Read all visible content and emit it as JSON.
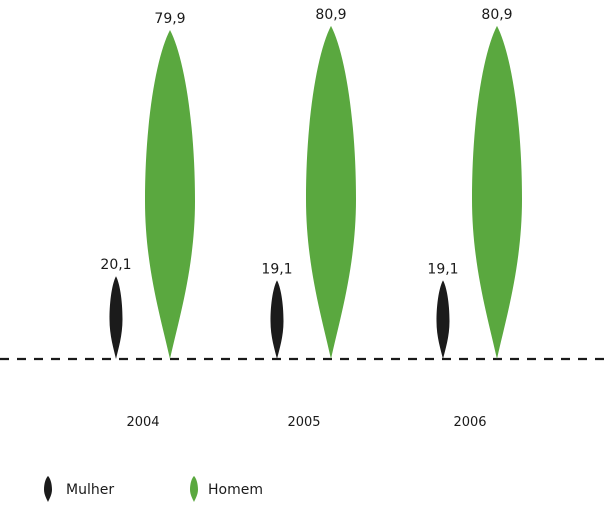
{
  "chart_data": {
    "type": "bar",
    "categories": [
      "2004",
      "2005",
      "2006"
    ],
    "series": [
      {
        "name": "Mulher",
        "color": "#1b1b1b",
        "values": [
          20.1,
          19.1,
          19.1
        ],
        "labels": [
          "20,1",
          "19,1",
          "19,1"
        ]
      },
      {
        "name": "Homem",
        "color": "#5aa83f",
        "values": [
          79.9,
          80.9,
          80.9
        ],
        "labels": [
          "79,9",
          "80,9",
          "80,9"
        ]
      }
    ],
    "title": "",
    "xlabel": "",
    "ylabel": "",
    "ylim": [
      0,
      90
    ],
    "grid": false,
    "baseline_style": "dashed",
    "legend_position": "bottom-left",
    "mark_shape": "teardrop"
  }
}
